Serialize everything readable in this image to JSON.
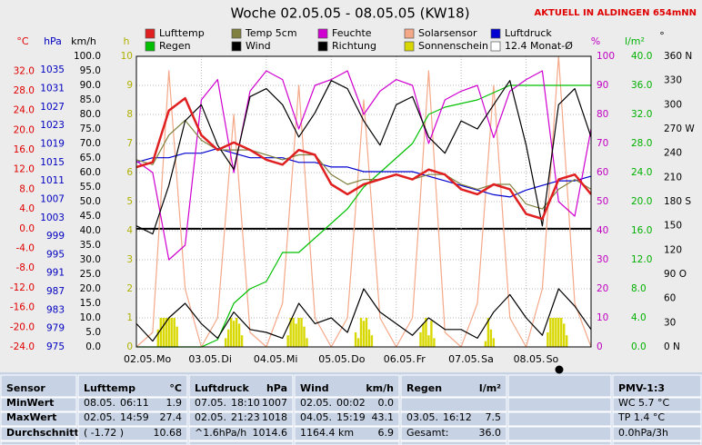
{
  "chart_data": {
    "type": "line",
    "title": "Woche 02.05.05 - 08.05.05 (KW18)",
    "subtitle": "AKTUELL IN ALDINGEN 654mNN",
    "xlim": [
      0,
      168
    ],
    "xticks": [
      0,
      24,
      48,
      72,
      96,
      120,
      144
    ],
    "days": [
      "02.05.",
      "03.05.",
      "04.05.",
      "05.05.",
      "06.05.",
      "07.05.",
      "08.05."
    ],
    "weekdays": [
      "Mo",
      "Di",
      "Mi",
      "Do",
      "Fr",
      "Sa",
      "So"
    ],
    "grid": true,
    "axes": [
      {
        "unit": "°C",
        "color": "#e00000",
        "lim": [
          -24,
          35
        ],
        "ticks": [
          {
            "value": 32,
            "label": "32.0"
          },
          {
            "value": 28,
            "label": "28.0"
          },
          {
            "value": 24,
            "label": "24.0"
          },
          {
            "value": 20,
            "label": "20.0"
          },
          {
            "value": 16,
            "label": "16.0"
          },
          {
            "value": 12,
            "label": "12.0"
          },
          {
            "value": 8,
            "label": "8.0"
          },
          {
            "value": 4,
            "label": "4.0"
          },
          {
            "value": 0,
            "label": "0.0"
          },
          {
            "value": -4,
            "label": "-4.0"
          },
          {
            "value": -8,
            "label": "-8.0"
          },
          {
            "value": -12,
            "label": "-12.0"
          },
          {
            "value": -16,
            "label": "-16.0"
          },
          {
            "value": -20,
            "label": "-20.0"
          },
          {
            "value": -24,
            "label": "-24.0"
          }
        ]
      },
      {
        "unit": "hPa",
        "color": "#0000c0",
        "lim": [
          975,
          1038
        ],
        "ticks": [
          1035,
          1031,
          1027,
          1023,
          1019,
          1015,
          1011,
          1007,
          1003,
          999,
          995,
          991,
          987,
          983,
          979,
          975
        ]
      },
      {
        "unit": "km/h",
        "color": "#000000",
        "lim": [
          0,
          100
        ],
        "ticks": [
          {
            "value": 100,
            "label": "100.0"
          },
          {
            "value": 95,
            "label": "95.0"
          },
          {
            "value": 90,
            "label": "90.0"
          },
          {
            "value": 85,
            "label": "85.0"
          },
          {
            "value": 80,
            "label": "80.0"
          },
          {
            "value": 75,
            "label": "75.0"
          },
          {
            "value": 70,
            "label": "70.0"
          },
          {
            "value": 65,
            "label": "65.0"
          },
          {
            "value": 60,
            "label": "60.0"
          },
          {
            "value": 55,
            "label": "55.0"
          },
          {
            "value": 50,
            "label": "50.0"
          },
          {
            "value": 45,
            "label": "45.0"
          },
          {
            "value": 40,
            "label": "40.0"
          },
          {
            "value": 35,
            "label": "35.0"
          },
          {
            "value": 30,
            "label": "30.0"
          },
          {
            "value": 25,
            "label": "25.0"
          },
          {
            "value": 20,
            "label": "20.0"
          },
          {
            "value": 15,
            "label": "15.0"
          },
          {
            "value": 10,
            "label": "10.0"
          },
          {
            "value": 5,
            "label": "5.0"
          },
          {
            "value": 0,
            "label": "0.0"
          }
        ]
      },
      {
        "unit": "h",
        "color": "#b0b000",
        "lim": [
          0,
          10
        ],
        "ticks": [
          10,
          9,
          8,
          7,
          6,
          5,
          4,
          3,
          2,
          1,
          0
        ]
      },
      {
        "unit": "%",
        "color": "#c000c0",
        "lim": [
          0,
          100
        ],
        "ticks": [
          100,
          90,
          80,
          70,
          60,
          50,
          40,
          30,
          20,
          10,
          0
        ]
      },
      {
        "unit": "l/m²",
        "color": "#00b000",
        "lim": [
          0,
          40
        ],
        "ticks": [
          {
            "value": 40,
            "label": "40.0"
          },
          {
            "value": 36,
            "label": "36.0"
          },
          {
            "value": 32,
            "label": "32.0"
          },
          {
            "value": 28,
            "label": "28.0"
          },
          {
            "value": 24,
            "label": "24.0"
          },
          {
            "value": 20,
            "label": "20.0"
          },
          {
            "value": 16,
            "label": "16.0"
          },
          {
            "value": 12,
            "label": "12.0"
          },
          {
            "value": 8,
            "label": "8.0"
          },
          {
            "value": 4,
            "label": "4.0"
          },
          {
            "value": 0,
            "label": "0.0"
          }
        ]
      },
      {
        "unit": "°",
        "color": "#000000",
        "lim": [
          0,
          360
        ],
        "ticks": [
          {
            "value": 360,
            "label": "360 N"
          },
          330,
          300,
          {
            "value": 270,
            "label": "270 W"
          },
          240,
          210,
          {
            "value": 180,
            "label": "180 S"
          },
          150,
          120,
          {
            "value": 90,
            "label": "90 O"
          },
          60,
          30,
          {
            "value": 0,
            "label": "0 N"
          }
        ]
      }
    ],
    "x": [
      0,
      6,
      12,
      18,
      24,
      30,
      36,
      42,
      48,
      54,
      60,
      66,
      72,
      78,
      84,
      90,
      96,
      102,
      108,
      114,
      120,
      126,
      132,
      138,
      144,
      150,
      156,
      162,
      168
    ],
    "series": [
      {
        "name": "Lufttemp",
        "color": "#e02020",
        "axis": 0,
        "values": [
          12.5,
          13.5,
          24,
          26.5,
          19,
          16,
          17.5,
          16,
          14,
          13,
          16,
          15,
          9,
          7,
          9,
          10,
          11,
          10,
          12,
          11,
          8,
          7,
          9,
          8,
          3,
          2,
          10,
          11,
          7
        ]
      },
      {
        "name": "Temp 5cm",
        "color": "#808040",
        "axis": 0,
        "values": [
          14,
          13,
          19,
          22,
          18,
          16,
          16,
          16,
          15,
          14,
          15,
          15,
          11,
          9,
          10,
          10,
          11,
          10,
          11,
          11,
          9,
          8,
          9,
          9,
          5,
          4,
          8,
          10,
          8
        ]
      },
      {
        "name": "Feuchte",
        "color": "#d000d0",
        "axis": 4,
        "values": [
          64,
          60,
          30,
          35,
          85,
          92,
          60,
          88,
          95,
          92,
          75,
          90,
          92,
          95,
          80,
          88,
          92,
          90,
          70,
          85,
          88,
          90,
          72,
          88,
          92,
          95,
          50,
          45,
          75
        ]
      },
      {
        "name": "Solarsensor",
        "color": "#f4a888",
        "axis": 4,
        "values": [
          0,
          5,
          95,
          20,
          0,
          10,
          80,
          5,
          0,
          15,
          90,
          10,
          0,
          10,
          85,
          10,
          0,
          10,
          95,
          5,
          0,
          15,
          90,
          10,
          0,
          20,
          100,
          15,
          0
        ]
      },
      {
        "name": "Luftdruck",
        "color": "#0000d0",
        "axis": 1,
        "values": [
          1015,
          1016,
          1016,
          1017,
          1017,
          1018,
          1017,
          1016,
          1016,
          1016,
          1015,
          1015,
          1014,
          1014,
          1013,
          1013,
          1013,
          1013,
          1012,
          1011,
          1010,
          1009,
          1008,
          1007.5,
          1009,
          1010,
          1011,
          1011,
          1012
        ]
      },
      {
        "name": "Regen",
        "color": "#00c000",
        "axis": 5,
        "values": [
          0,
          0,
          0,
          0,
          0,
          1,
          6,
          8,
          9,
          13,
          13,
          15,
          17,
          19,
          22,
          24,
          26,
          28,
          32,
          33,
          33.5,
          34,
          35,
          36,
          36,
          36,
          36,
          36,
          36
        ]
      },
      {
        "name": "Wind",
        "color": "#000000",
        "axis": 2,
        "values": [
          8,
          2,
          10,
          15,
          8,
          3,
          12,
          6,
          5,
          3,
          15,
          8,
          10,
          5,
          20,
          12,
          8,
          4,
          10,
          6,
          6,
          3,
          12,
          18,
          10,
          4,
          20,
          14,
          6
        ]
      },
      {
        "name": "Richtung",
        "color": "#000000",
        "axis": 6,
        "values": [
          150,
          140,
          200,
          280,
          300,
          250,
          220,
          310,
          320,
          300,
          260,
          290,
          330,
          320,
          280,
          250,
          300,
          310,
          260,
          240,
          280,
          270,
          300,
          330,
          250,
          150,
          300,
          320,
          260
        ]
      },
      {
        "name": "Sonnenschein",
        "color": "#d8d800",
        "axis": 3,
        "type": "bar",
        "x": [
          8,
          9,
          10,
          11,
          12,
          13,
          14,
          15,
          33,
          34,
          35,
          36,
          37,
          38,
          39,
          56,
          57,
          58,
          59,
          60,
          61,
          62,
          63,
          81,
          82,
          83,
          84,
          85,
          86,
          87,
          105,
          106,
          107,
          108,
          109,
          110,
          129,
          130,
          131,
          132,
          152,
          153,
          154,
          155,
          156,
          157,
          158,
          159
        ],
        "values": [
          0.6,
          1,
          1,
          1,
          1,
          1,
          1,
          0.7,
          0.3,
          0.6,
          1,
          0.9,
          1,
          0.8,
          0.4,
          0.4,
          1,
          1,
          0.8,
          1,
          1,
          0.7,
          0.3,
          0.5,
          0.3,
          1,
          0.9,
          1,
          0.6,
          0.4,
          0.5,
          0.8,
          1,
          0.4,
          0.9,
          0.3,
          0.2,
          1,
          0.6,
          0.3,
          0.5,
          1,
          1,
          1,
          1,
          1,
          0.8,
          0.4
        ]
      },
      {
        "name": "12.4 Monat-Ø",
        "color": "#ffffff"
      }
    ]
  },
  "table": {
    "header": [
      [
        "Sensor"
      ],
      [
        "Lufttemp",
        "°C"
      ],
      [
        "Luftdruck",
        "hPa"
      ],
      [
        "Wind",
        "km/h"
      ],
      [
        "Regen",
        "l/m²"
      ],
      [],
      [
        "PMV-1:3"
      ]
    ],
    "rows": [
      [
        [
          "MinWert"
        ],
        [
          "08.05.",
          "06:11",
          "1.9"
        ],
        [
          "07.05.",
          "18:10",
          "1007"
        ],
        [
          "02.05.",
          "00:02",
          "0.0"
        ],
        [],
        [],
        [
          "WC 5.7 °C"
        ]
      ],
      [
        [
          "MaxWert"
        ],
        [
          "02.05.",
          "14:59",
          "27.4"
        ],
        [
          "02.05.",
          "21:23",
          "1018"
        ],
        [
          "04.05.",
          "15:19",
          "43.1"
        ],
        [
          "03.05.",
          "16:12",
          "7.5"
        ],
        [],
        [
          "TP 1.4 °C"
        ]
      ],
      [
        [
          "Durchschnitt"
        ],
        [
          "( -1.72 )",
          "10.68"
        ],
        [
          "^1.6hPa/h",
          "1014.6"
        ],
        [
          "1164.4 km",
          "6.9"
        ],
        [
          "Gesamt:",
          "36.0"
        ],
        [],
        [
          "0.0hPa/3h"
        ]
      ]
    ]
  }
}
